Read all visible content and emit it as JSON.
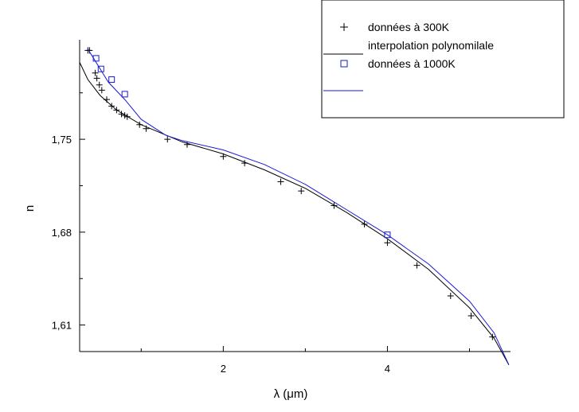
{
  "chart_data": {
    "type": "line",
    "title": "",
    "xlabel": "λ (μm)",
    "ylabel": "n",
    "xlim": [
      0.25,
      5.5
    ],
    "ylim": [
      1.59,
      1.825
    ],
    "x_ticks": [
      {
        "value": 2,
        "label": "2"
      },
      {
        "value": 4,
        "label": "4"
      }
    ],
    "y_ticks": [
      {
        "value": 1.61,
        "label": "1,61"
      },
      {
        "value": 1.68,
        "label": "1,68"
      },
      {
        "value": 1.75,
        "label": "1,75"
      }
    ],
    "grid": false,
    "legend_position": "top-right",
    "colors": {
      "black_series": "#000000",
      "blue_series": "#1a1ad6"
    },
    "legend": [
      {
        "label": "données à 300K",
        "marker": "plus",
        "color": "#000000"
      },
      {
        "label": "interpolation polynomilale",
        "marker": "line",
        "color": "#000000"
      },
      {
        "label": "données à 1000K",
        "marker": "square",
        "color": "#1a1ad6"
      },
      {
        "label": "",
        "marker": "line",
        "color": "#1a1ad6"
      }
    ],
    "series": [
      {
        "name": "données à 300K",
        "kind": "scatter",
        "marker": "plus",
        "color": "#000000",
        "points": [
          [
            0.35,
            1.817
          ],
          [
            0.37,
            1.817
          ],
          [
            0.44,
            1.8
          ],
          [
            0.46,
            1.796
          ],
          [
            0.49,
            1.791
          ],
          [
            0.52,
            1.787
          ],
          [
            0.58,
            1.78
          ],
          [
            0.64,
            1.775
          ],
          [
            0.7,
            1.772
          ],
          [
            0.76,
            1.769
          ],
          [
            0.8,
            1.768
          ],
          [
            0.83,
            1.767
          ],
          [
            0.98,
            1.761
          ],
          [
            1.06,
            1.758
          ],
          [
            1.32,
            1.75
          ],
          [
            1.56,
            1.746
          ],
          [
            2.0,
            1.737
          ],
          [
            2.26,
            1.732
          ],
          [
            2.7,
            1.718
          ],
          [
            2.95,
            1.711
          ],
          [
            3.35,
            1.7
          ],
          [
            3.72,
            1.686
          ],
          [
            4.0,
            1.672
          ],
          [
            4.36,
            1.655
          ],
          [
            4.77,
            1.632
          ],
          [
            5.02,
            1.617
          ],
          [
            5.28,
            1.601
          ]
        ]
      },
      {
        "name": "interpolation polynomilale",
        "kind": "line",
        "color": "#000000",
        "points": [
          [
            0.25,
            1.808
          ],
          [
            0.35,
            1.795
          ],
          [
            0.5,
            1.783
          ],
          [
            0.7,
            1.772
          ],
          [
            1.0,
            1.761
          ],
          [
            1.5,
            1.748
          ],
          [
            2.0,
            1.739
          ],
          [
            2.5,
            1.727
          ],
          [
            3.0,
            1.713
          ],
          [
            3.5,
            1.695
          ],
          [
            4.0,
            1.675
          ],
          [
            4.5,
            1.652
          ],
          [
            5.0,
            1.623
          ],
          [
            5.3,
            1.6
          ],
          [
            5.48,
            1.58
          ]
        ]
      },
      {
        "name": "données à 1000K",
        "kind": "scatter",
        "marker": "square",
        "color": "#1a1ad6",
        "points": [
          [
            0.45,
            1.811
          ],
          [
            0.51,
            1.803
          ],
          [
            0.64,
            1.795
          ],
          [
            0.8,
            1.784
          ],
          [
            4.0,
            1.678
          ]
        ]
      },
      {
        "name": "",
        "kind": "line",
        "color": "#1a1ad6",
        "points": [
          [
            0.35,
            1.818
          ],
          [
            0.5,
            1.803
          ],
          [
            0.6,
            1.793
          ],
          [
            0.8,
            1.78
          ],
          [
            1.0,
            1.765
          ],
          [
            1.3,
            1.753
          ],
          [
            1.5,
            1.749
          ],
          [
            2.0,
            1.742
          ],
          [
            2.5,
            1.731
          ],
          [
            3.0,
            1.716
          ],
          [
            3.5,
            1.697
          ],
          [
            4.0,
            1.678
          ],
          [
            4.5,
            1.656
          ],
          [
            5.0,
            1.628
          ],
          [
            5.3,
            1.604
          ],
          [
            5.48,
            1.58
          ]
        ]
      }
    ]
  }
}
